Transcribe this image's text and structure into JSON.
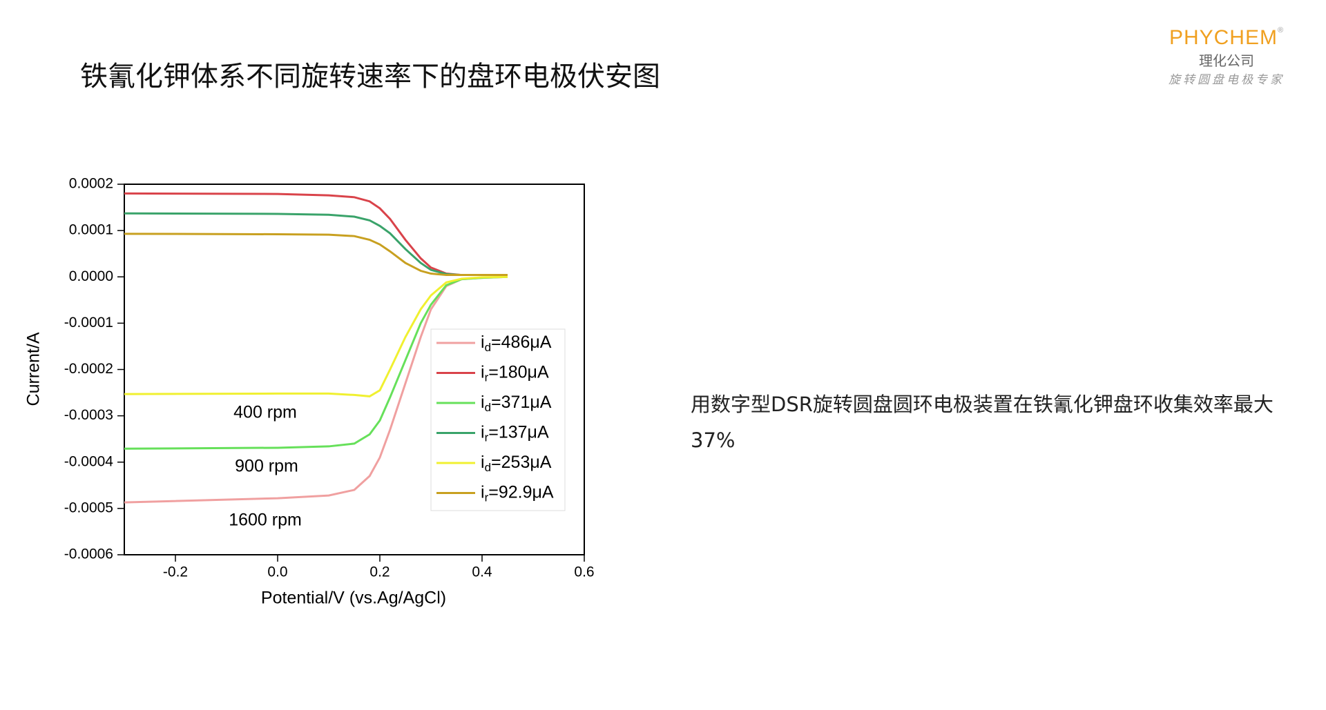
{
  "header": {
    "title": "铁氰化钾体系不同旋转速率下的盘环电极伏安图",
    "logo": {
      "brand": "PHYCHEM",
      "registered": "®",
      "company": "理化公司",
      "slogan": "旋转圆盘电极专家"
    }
  },
  "note": "用数字型DSR旋转圆盘圆环电极装置在铁氰化钾盘环收集效率最大37%",
  "chart_data": {
    "type": "line",
    "xlabel": "Potential/V (vs.Ag/AgCl)",
    "ylabel": "Current/A",
    "xlim": [
      -0.3,
      0.6
    ],
    "ylim": [
      -0.0006,
      0.0002
    ],
    "xticks": [
      -0.2,
      {
        "value": 0,
        "label": "0.0"
      },
      0.2,
      0.4,
      0.6
    ],
    "yticks": [
      -0.0006,
      -0.0005,
      -0.0004,
      -0.0003,
      -0.0002,
      -0.0001,
      {
        "value": 0,
        "label": "0.0000"
      },
      0.0001,
      0.0002
    ],
    "annotations": [
      "400 rpm",
      "900 rpm",
      "1600 rpm"
    ],
    "legend": "right",
    "x": [
      -0.3,
      0,
      0.1,
      0.15,
      0.18,
      0.2,
      0.22,
      0.25,
      0.28,
      0.3,
      0.33,
      0.36,
      0.4,
      0.45
    ],
    "series": [
      {
        "name": "id=486μA",
        "color": "#f0a0a0",
        "values": [
          -0.000487,
          -0.000478,
          -0.000472,
          -0.00046,
          -0.00043,
          -0.00039,
          -0.00033,
          -0.00023,
          -0.00013,
          -7e-05,
          -2e-05,
          -5e-06,
          -2e-06,
          0
        ]
      },
      {
        "name": "ir=180μA",
        "color": "#d9434a",
        "values": [
          0.00018,
          0.000179,
          0.000176,
          0.000172,
          0.000163,
          0.000148,
          0.000125,
          8e-05,
          4e-05,
          2e-05,
          7e-06,
          4e-06,
          4e-06,
          4e-06
        ]
      },
      {
        "name": "id=371μA",
        "color": "#66e05a",
        "values": [
          -0.000371,
          -0.000369,
          -0.000366,
          -0.00036,
          -0.00034,
          -0.00031,
          -0.00026,
          -0.00018,
          -0.0001,
          -6e-05,
          -1.8e-05,
          -5e-06,
          -2e-06,
          0
        ]
      },
      {
        "name": "ir=137μA",
        "color": "#3aa36a",
        "values": [
          0.000137,
          0.000136,
          0.000134,
          0.00013,
          0.000122,
          0.00011,
          9.4e-05,
          6e-05,
          3e-05,
          1.5e-05,
          6e-06,
          4e-06,
          4e-06,
          4e-06
        ]
      },
      {
        "name": "id=253μA",
        "color": "#f0f030",
        "values": [
          -0.000253,
          -0.000252,
          -0.000252,
          -0.000255,
          -0.000258,
          -0.000245,
          -0.0002,
          -0.00013,
          -7e-05,
          -4e-05,
          -1.2e-05,
          -4e-06,
          -1e-06,
          0
        ]
      },
      {
        "name": "ir=92.9μA",
        "color": "#c8a020",
        "values": [
          9.3e-05,
          9.2e-05,
          9.1e-05,
          8.8e-05,
          8e-05,
          7e-05,
          5.5e-05,
          3e-05,
          1.3e-05,
          7e-06,
          4e-06,
          4e-06,
          4e-06,
          4e-06
        ]
      }
    ]
  }
}
